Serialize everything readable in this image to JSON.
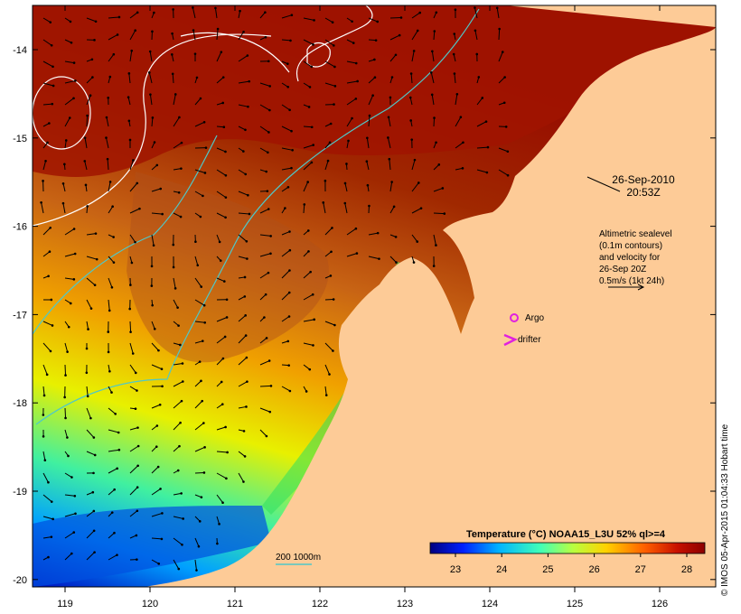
{
  "map": {
    "lat_ticks": [
      "-14",
      "-15",
      "-16",
      "-17",
      "-18",
      "-19",
      "-20"
    ],
    "lon_ticks": [
      "119",
      "120",
      "121",
      "122",
      "123",
      "124",
      "125",
      "126"
    ]
  },
  "annotations": {
    "date": "26-Sep-2010",
    "time": "20:53Z",
    "altimetry": [
      "Altimetric sealevel",
      "(0.1m contours)",
      "and velocity for",
      "26-Sep 20Z",
      "0.5m/s (1kt 24h)"
    ],
    "argo": "Argo",
    "drifter": "drifter"
  },
  "isobath_legend": "200  1000m",
  "colorbar": {
    "title": "Temperature (°C) NOAA15_L3U 52% ql>=4",
    "ticks": [
      "23",
      "24",
      "25",
      "26",
      "27",
      "28"
    ],
    "stops": [
      "#00007f",
      "#0020ff",
      "#00b4ff",
      "#40ffb8",
      "#b8ff40",
      "#ffd200",
      "#ff6000",
      "#c81000",
      "#8c0000"
    ]
  },
  "copyright": "© IMOS 05-Apr-2015 01:04:33 Hobart time",
  "colors": {
    "land": "#fdcb97",
    "isobath": "#4fc8c8",
    "contour": "#ffffff",
    "argo": "#e020e0",
    "drifter": "#e020e0"
  }
}
